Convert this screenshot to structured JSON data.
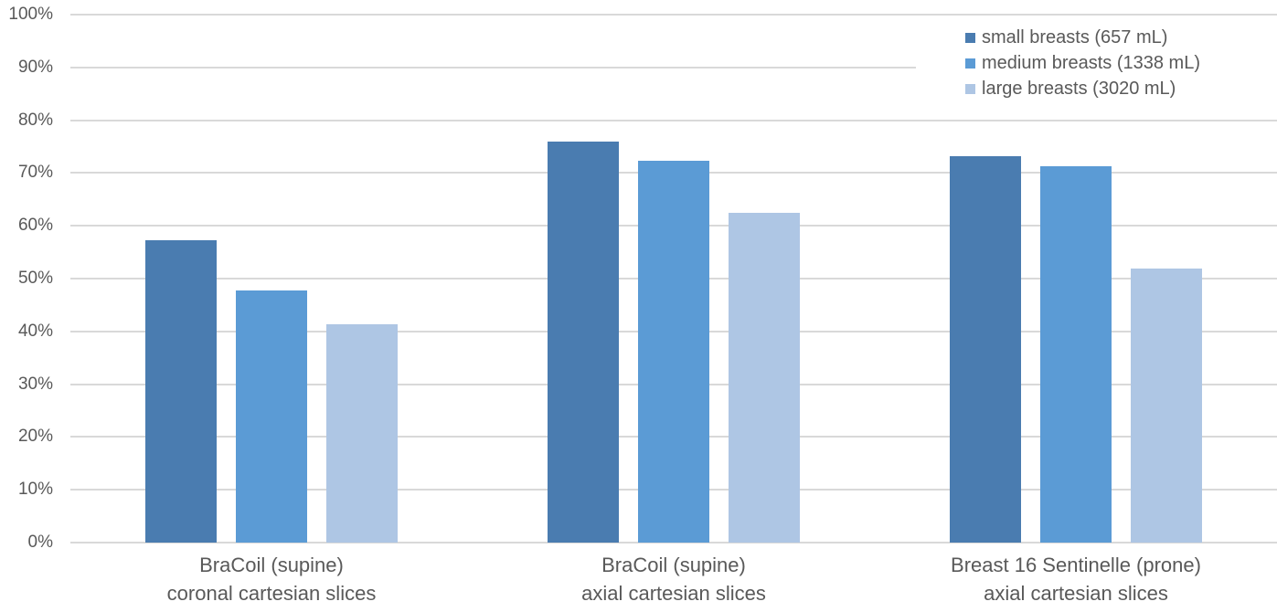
{
  "chart_data": {
    "type": "bar",
    "categories": [
      [
        "BraCoil (supine)",
        "coronal cartesian slices"
      ],
      [
        "BraCoil (supine)",
        "axial cartesian slices"
      ],
      [
        "Breast 16 Sentinelle (prone)",
        "axial cartesian slices"
      ]
    ],
    "series": [
      {
        "name": "small breasts (657 mL)",
        "key": "small-breasts",
        "color": "#4A7CB0",
        "values": [
          57.2,
          75.9,
          73.1
        ]
      },
      {
        "name": "medium breasts (1338 mL)",
        "key": "medium-breasts",
        "color": "#5B9BD5",
        "values": [
          47.7,
          72.4,
          71.2
        ]
      },
      {
        "name": "large breasts (3020 mL)",
        "key": "large-breasts",
        "color": "#AEC6E4",
        "values": [
          41.4,
          62.5,
          51.9
        ]
      }
    ],
    "y_axis": {
      "min": 0,
      "max": 100,
      "step": 10,
      "tick_labels": [
        "0%",
        "10%",
        "20%",
        "30%",
        "40%",
        "50%",
        "60%",
        "70%",
        "80%",
        "90%",
        "100%"
      ]
    },
    "legend_position": "top-right",
    "grid": true,
    "colors": {
      "gridline": "#D9D9D9",
      "text": "#595959",
      "background": "#FFFFFF"
    }
  }
}
